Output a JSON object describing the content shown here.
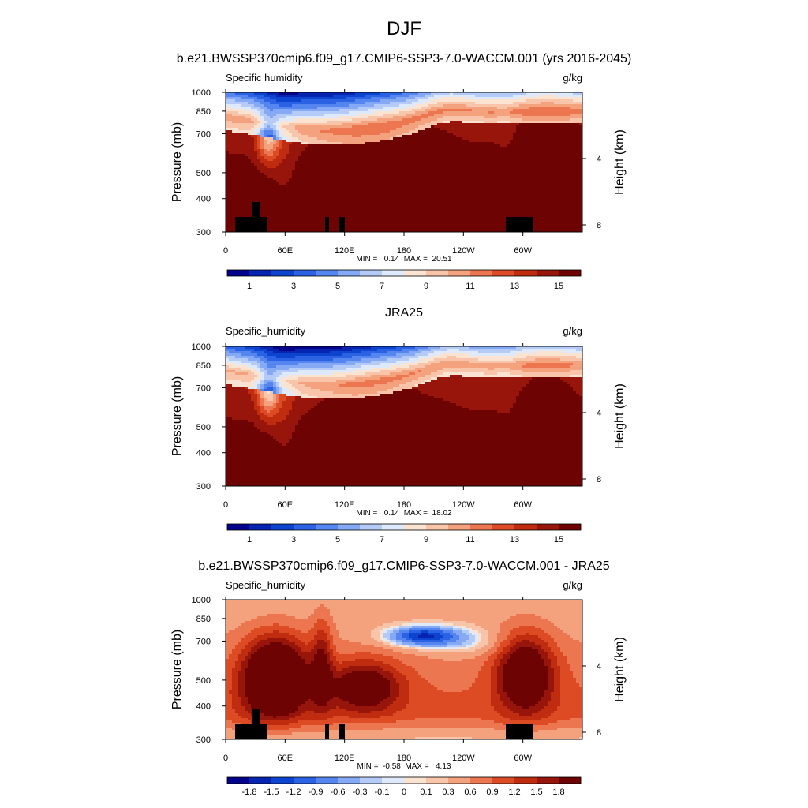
{
  "figure": {
    "title": "DJF",
    "panel_titles": [
      "b.e21.BWSSP370cmip6.f09_g17.CMIP6-SSP3-7.0-WACCM.001 (yrs 2016-2045)",
      "JRA25",
      "b.e21.BWSSP370cmip6.f09_g17.CMIP6-SSP3-7.0-WACCM.001 - JRA25"
    ]
  },
  "chart_data": [
    {
      "type": "heatmap",
      "title": "b.e21.BWSSP370cmip6.f09_g17.CMIP6-SSP3-7.0-WACCM.001 (yrs 2016-2045)",
      "variable": "Specific humidity",
      "units": "g/kg",
      "ylabel": "Pressure (mb)",
      "ylabel_right": "Height (km)",
      "x_ticks": [
        "0",
        "60E",
        "120E",
        "180",
        "120W",
        "60W"
      ],
      "x_tick_values": [
        0,
        60,
        120,
        180,
        240,
        300
      ],
      "xlim": [
        0,
        360
      ],
      "y_ticks": [
        "300",
        "400",
        "500",
        "700",
        "850",
        "1000"
      ],
      "y_tick_values": [
        300,
        400,
        500,
        700,
        850,
        1000
      ],
      "ylim": [
        1000,
        300
      ],
      "y_scale": "log",
      "right_ticks": [
        "8",
        "4"
      ],
      "right_tick_values": [
        8,
        4
      ],
      "stats": "MIN =   0.14  MAX =  20.51",
      "colorbar": {
        "labels": [
          "1",
          "3",
          "5",
          "7",
          "9",
          "11",
          "13",
          "15"
        ],
        "colors": [
          "#02028a",
          "#0624b0",
          "#0d44cf",
          "#2a62e3",
          "#5585ee",
          "#85a9f4",
          "#b4cbf7",
          "#deeafb",
          "#fbe3d2",
          "#f9c5aa",
          "#f4a17d",
          "#ec7650",
          "#dd4b25",
          "#bf2c0f",
          "#97150a",
          "#6d0303"
        ]
      }
    },
    {
      "type": "heatmap",
      "title": "JRA25",
      "variable": "Specific_humidity",
      "units": "g/kg",
      "ylabel": "Pressure (mb)",
      "ylabel_right": "Height (km)",
      "x_ticks": [
        "0",
        "60E",
        "120E",
        "180",
        "120W",
        "60W"
      ],
      "x_tick_values": [
        0,
        60,
        120,
        180,
        240,
        300
      ],
      "xlim": [
        0,
        360
      ],
      "y_ticks": [
        "300",
        "400",
        "500",
        "700",
        "850",
        "1000"
      ],
      "y_tick_values": [
        300,
        400,
        500,
        700,
        850,
        1000
      ],
      "ylim": [
        1000,
        300
      ],
      "y_scale": "log",
      "right_ticks": [
        "8",
        "4"
      ],
      "right_tick_values": [
        8,
        4
      ],
      "stats": "MIN =   0.14  MAX =  18.02",
      "colorbar": {
        "labels": [
          "1",
          "3",
          "5",
          "7",
          "9",
          "11",
          "13",
          "15"
        ],
        "colors": [
          "#02028a",
          "#0624b0",
          "#0d44cf",
          "#2a62e3",
          "#5585ee",
          "#85a9f4",
          "#b4cbf7",
          "#deeafb",
          "#fbe3d2",
          "#f9c5aa",
          "#f4a17d",
          "#ec7650",
          "#dd4b25",
          "#bf2c0f",
          "#97150a",
          "#6d0303"
        ]
      }
    },
    {
      "type": "heatmap",
      "title": "b.e21.BWSSP370cmip6.f09_g17.CMIP6-SSP3-7.0-WACCM.001 - JRA25",
      "variable": "Specific_humidity",
      "units": "g/kg",
      "ylabel": "Pressure (mb)",
      "ylabel_right": "Height (km)",
      "x_ticks": [
        "0",
        "60E",
        "120E",
        "180",
        "120W",
        "60W"
      ],
      "x_tick_values": [
        0,
        60,
        120,
        180,
        240,
        300
      ],
      "xlim": [
        0,
        360
      ],
      "y_ticks": [
        "300",
        "400",
        "500",
        "700",
        "850",
        "1000"
      ],
      "y_tick_values": [
        300,
        400,
        500,
        700,
        850,
        1000
      ],
      "ylim": [
        1000,
        300
      ],
      "y_scale": "log",
      "right_ticks": [
        "8",
        "4"
      ],
      "right_tick_values": [
        8,
        4
      ],
      "stats": "MIN =  -0.58  MAX =   4.13",
      "colorbar": {
        "labels": [
          "-1.8",
          "-1.5",
          "-1.2",
          "-0.9",
          "-0.6",
          "-0.3",
          "-0.1",
          "0",
          "0.1",
          "0.3",
          "0.6",
          "0.9",
          "1.2",
          "1.5",
          "1.8"
        ],
        "colors": [
          "#02028a",
          "#0624b0",
          "#0d44cf",
          "#2a62e3",
          "#5585ee",
          "#85a9f4",
          "#b4cbf7",
          "#deeafb",
          "#fbe3d2",
          "#f9c5aa",
          "#f4a17d",
          "#ec7650",
          "#dd4b25",
          "#bf2c0f",
          "#97150a",
          "#6d0303"
        ]
      }
    }
  ]
}
